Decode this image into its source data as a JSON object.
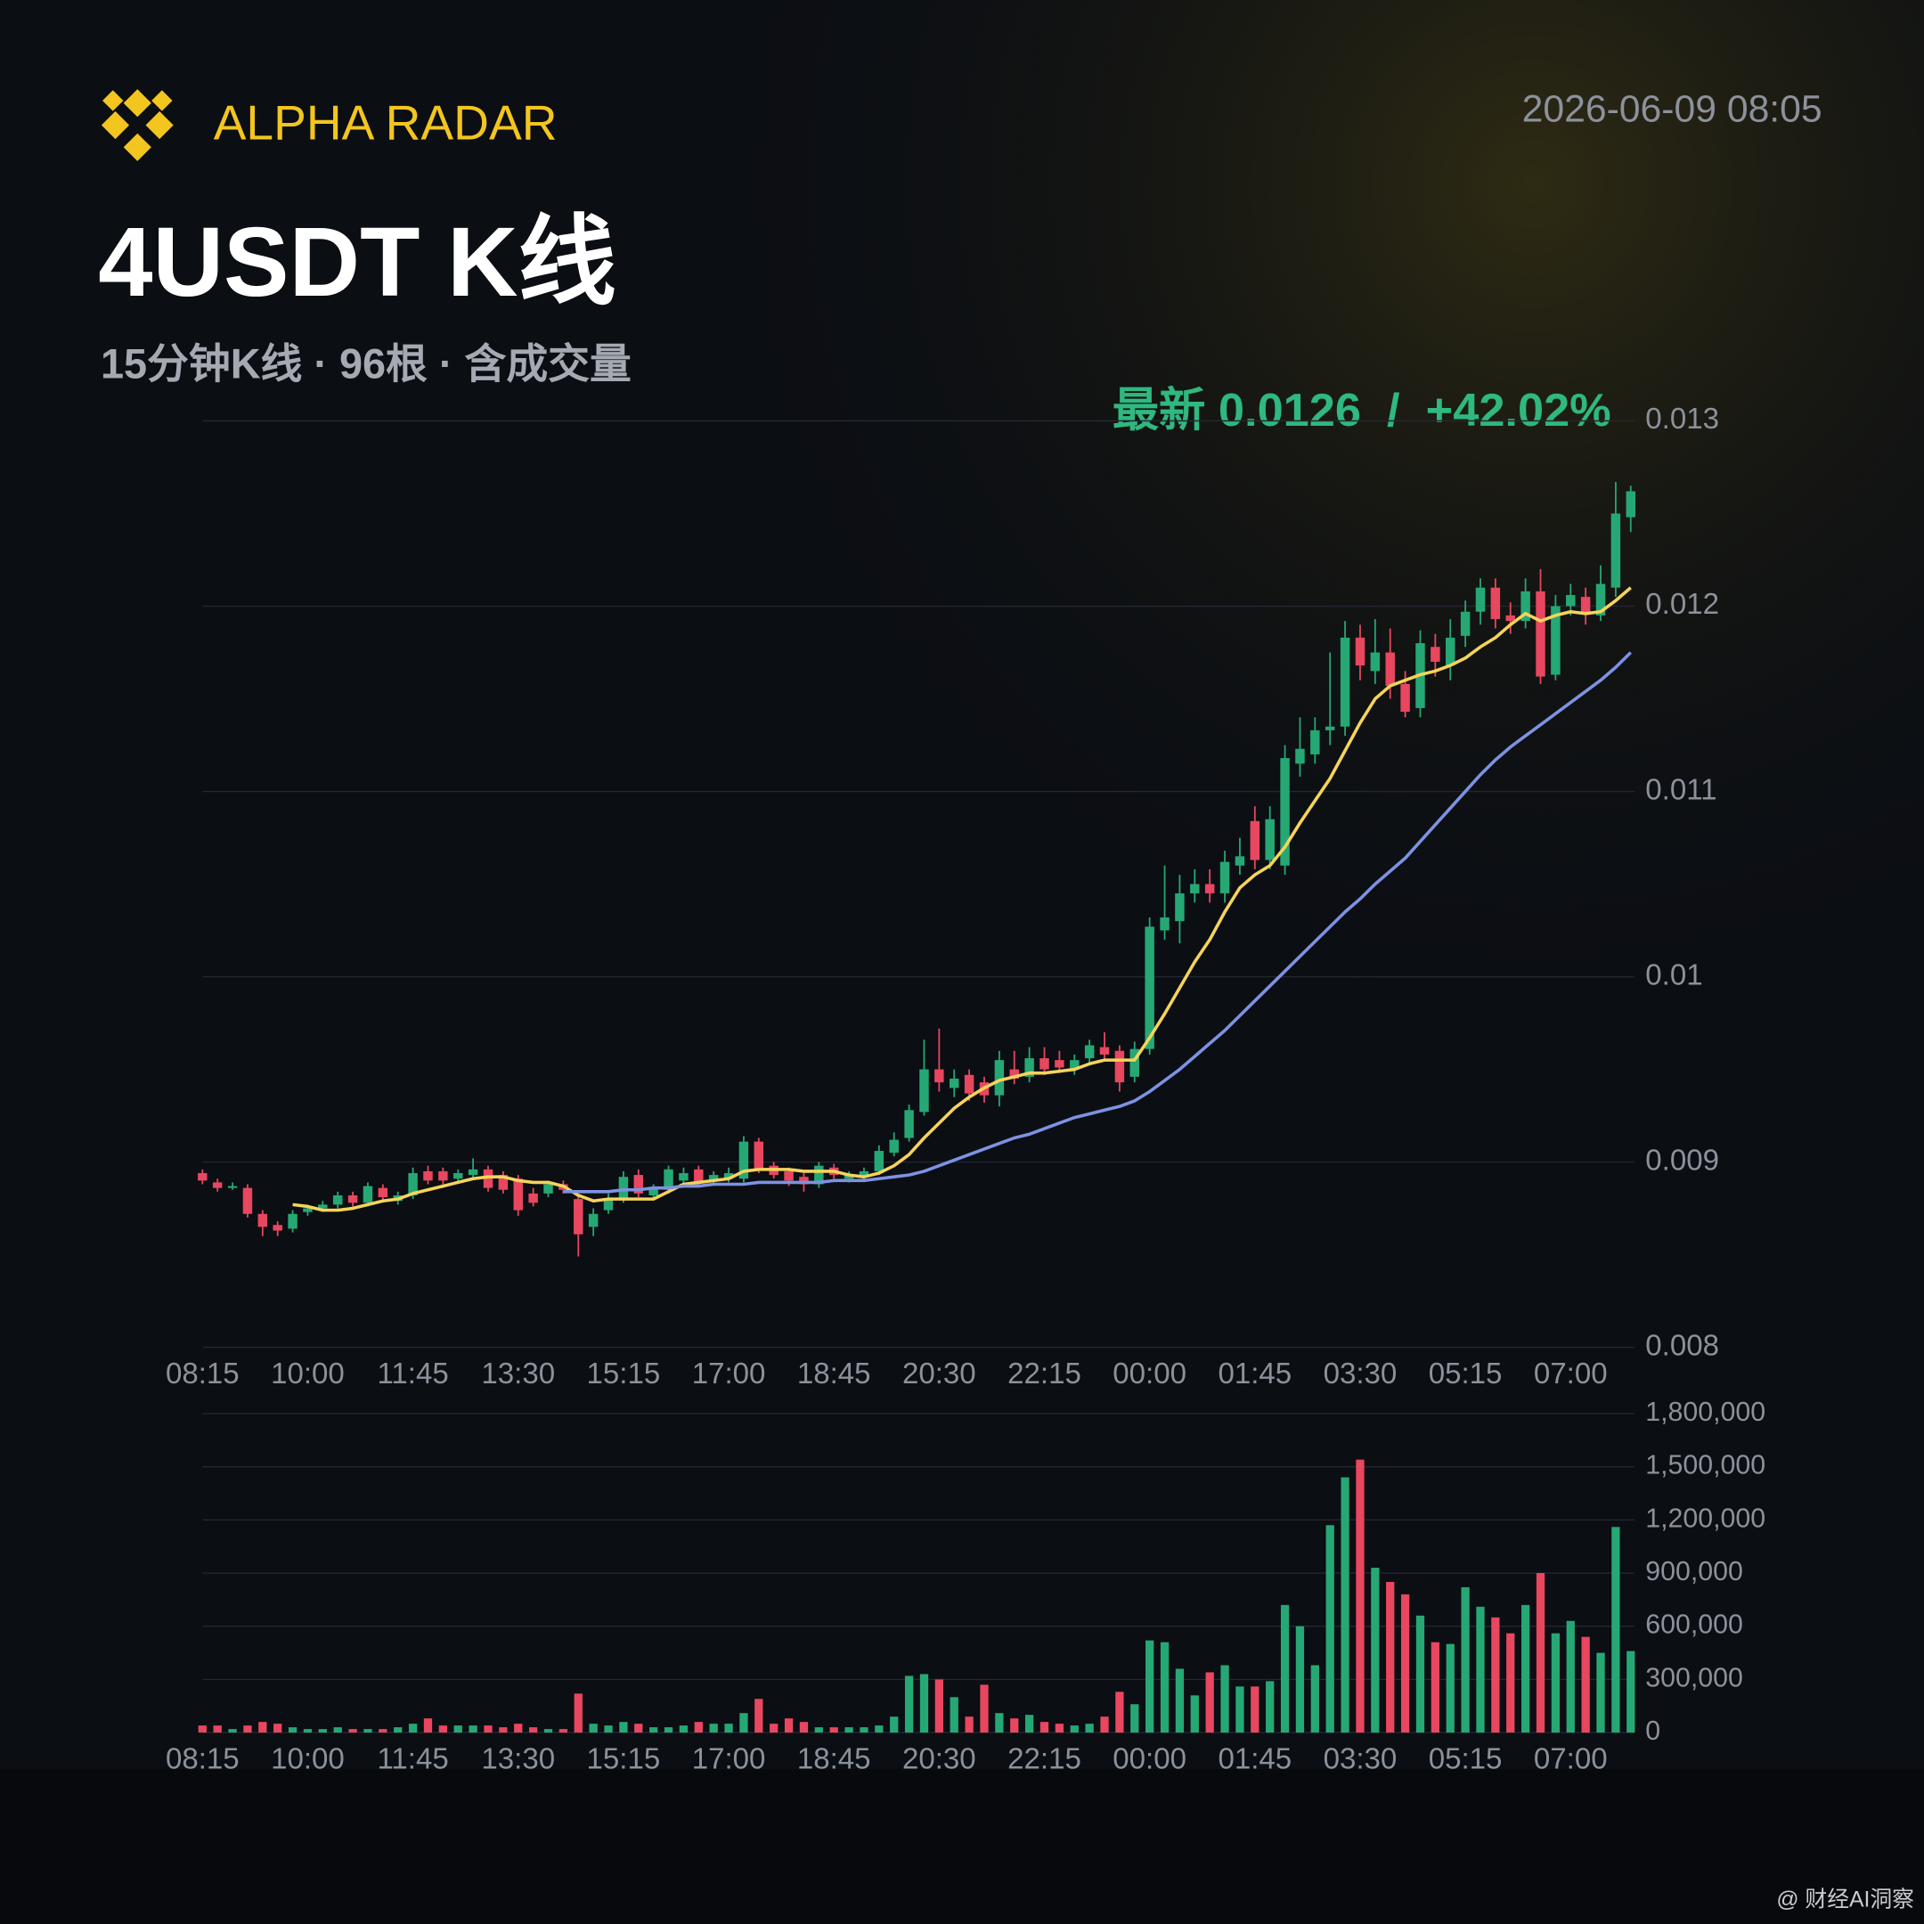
{
  "header": {
    "brand": "ALPHA RADAR",
    "datetime": "2026-06-09 08:05"
  },
  "footer": {
    "watermark": "@ 财经AI洞察"
  },
  "chart_data": [
    {
      "type": "candlestick",
      "title": "4USDT K线",
      "subtitle": "15分钟K线 · 96根 · 含成交量",
      "annotation": "最新 0.0126  /  +42.02%",
      "categories": [
        "08:15",
        null,
        null,
        null,
        null,
        null,
        null,
        "10:00",
        null,
        null,
        null,
        null,
        null,
        null,
        "11:45",
        null,
        null,
        null,
        null,
        null,
        null,
        "13:30",
        null,
        null,
        null,
        null,
        null,
        null,
        "15:15",
        null,
        null,
        null,
        null,
        null,
        null,
        "17:00",
        null,
        null,
        null,
        null,
        null,
        null,
        "18:45",
        null,
        null,
        null,
        null,
        null,
        null,
        "20:30",
        null,
        null,
        null,
        null,
        null,
        null,
        "22:15",
        null,
        null,
        null,
        null,
        null,
        null,
        "00:00",
        null,
        null,
        null,
        null,
        null,
        null,
        "01:45",
        null,
        null,
        null,
        null,
        null,
        null,
        "03:30",
        null,
        null,
        null,
        null,
        null,
        null,
        "05:15",
        null,
        null,
        null,
        null,
        null,
        null,
        "07:00",
        null,
        null,
        null,
        null
      ],
      "open": [
        0.00894,
        0.00889,
        0.00886,
        0.00886,
        0.00872,
        0.00866,
        0.00864,
        0.00873,
        0.00875,
        0.00877,
        0.00882,
        0.00878,
        0.00886,
        0.00879,
        0.00882,
        0.00895,
        0.00895,
        0.00891,
        0.00893,
        0.00896,
        0.00893,
        0.00891,
        0.00883,
        0.00883,
        0.00888,
        0.0088,
        0.00865,
        0.00874,
        0.0088,
        0.00893,
        0.00882,
        0.00885,
        0.0089,
        0.00896,
        0.0089,
        0.00891,
        0.00891,
        0.00911,
        0.00898,
        0.00895,
        0.00892,
        0.00888,
        0.00897,
        0.00891,
        0.00892,
        0.00895,
        0.00905,
        0.00913,
        0.00927,
        0.0095,
        0.0094,
        0.00947,
        0.00943,
        0.00936,
        0.0095,
        0.00946,
        0.00956,
        0.00955,
        0.0095,
        0.00956,
        0.00962,
        0.0096,
        0.00946,
        0.00961,
        0.01025,
        0.0103,
        0.01045,
        0.0105,
        0.01045,
        0.0106,
        0.01084,
        0.01063,
        0.0106,
        0.01115,
        0.0112,
        0.01133,
        0.01135,
        0.01183,
        0.01165,
        0.01175,
        0.01158,
        0.01145,
        0.01178,
        0.01168,
        0.01184,
        0.01197,
        0.0121,
        0.01195,
        0.01192,
        0.01208,
        0.01163,
        0.012,
        0.01205,
        0.01195,
        0.0121,
        0.01248
      ],
      "high": [
        0.00896,
        0.00891,
        0.00889,
        0.00888,
        0.00874,
        0.00868,
        0.00874,
        0.00877,
        0.00879,
        0.00884,
        0.00884,
        0.00889,
        0.00888,
        0.00884,
        0.00897,
        0.00898,
        0.00897,
        0.00896,
        0.00902,
        0.00898,
        0.00895,
        0.00893,
        0.00886,
        0.0089,
        0.0089,
        0.00882,
        0.00875,
        0.00883,
        0.00895,
        0.00896,
        0.00888,
        0.00898,
        0.00897,
        0.00898,
        0.00895,
        0.00897,
        0.00914,
        0.00913,
        0.009,
        0.00897,
        0.00894,
        0.009,
        0.00899,
        0.00895,
        0.00897,
        0.00909,
        0.00916,
        0.00931,
        0.00966,
        0.00972,
        0.0095,
        0.0095,
        0.00946,
        0.0096,
        0.0096,
        0.00962,
        0.00962,
        0.0096,
        0.00958,
        0.00966,
        0.0097,
        0.00963,
        0.00965,
        0.01032,
        0.0106,
        0.01055,
        0.01058,
        0.01058,
        0.01068,
        0.01075,
        0.01092,
        0.01092,
        0.01125,
        0.0114,
        0.0114,
        0.01175,
        0.01192,
        0.0119,
        0.01193,
        0.01188,
        0.01165,
        0.01187,
        0.01185,
        0.01193,
        0.01203,
        0.01215,
        0.01215,
        0.01202,
        0.01215,
        0.0122,
        0.01206,
        0.01212,
        0.0121,
        0.01222,
        0.01267,
        0.01265
      ],
      "low": [
        0.00888,
        0.00884,
        0.00885,
        0.0087,
        0.0086,
        0.0086,
        0.00862,
        0.00871,
        0.00873,
        0.00875,
        0.00876,
        0.00876,
        0.00879,
        0.00877,
        0.0088,
        0.00888,
        0.00888,
        0.00889,
        0.00891,
        0.00884,
        0.00883,
        0.00871,
        0.00876,
        0.00881,
        0.00883,
        0.00849,
        0.0086,
        0.00872,
        0.00878,
        0.00881,
        0.0088,
        0.00883,
        0.00888,
        0.00887,
        0.00888,
        0.00889,
        0.00889,
        0.00894,
        0.00891,
        0.00887,
        0.00884,
        0.00886,
        0.00891,
        0.00889,
        0.0089,
        0.00893,
        0.00903,
        0.00911,
        0.00925,
        0.00938,
        0.00935,
        0.00933,
        0.00932,
        0.0093,
        0.00942,
        0.00943,
        0.00947,
        0.00948,
        0.00947,
        0.00953,
        0.00955,
        0.00938,
        0.00943,
        0.00958,
        0.0102,
        0.01018,
        0.0104,
        0.0104,
        0.0104,
        0.01055,
        0.01058,
        0.01058,
        0.01055,
        0.01108,
        0.01115,
        0.01125,
        0.0113,
        0.0116,
        0.01158,
        0.0115,
        0.0114,
        0.0114,
        0.01162,
        0.0116,
        0.01178,
        0.0119,
        0.01188,
        0.01185,
        0.01188,
        0.01158,
        0.0116,
        0.01195,
        0.0119,
        0.01192,
        0.01205,
        0.0124
      ],
      "close": [
        0.0089,
        0.00886,
        0.00887,
        0.00872,
        0.00865,
        0.00863,
        0.00872,
        0.00875,
        0.00877,
        0.00882,
        0.00878,
        0.00887,
        0.00881,
        0.00882,
        0.00894,
        0.0089,
        0.0089,
        0.00894,
        0.00896,
        0.00886,
        0.00885,
        0.00874,
        0.00878,
        0.00888,
        0.00885,
        0.00861,
        0.00872,
        0.0088,
        0.00892,
        0.00883,
        0.00886,
        0.00896,
        0.00894,
        0.00889,
        0.00893,
        0.00894,
        0.00911,
        0.00896,
        0.00893,
        0.0089,
        0.00888,
        0.00898,
        0.00893,
        0.00893,
        0.00895,
        0.00906,
        0.00912,
        0.00928,
        0.0095,
        0.00943,
        0.00945,
        0.00937,
        0.00936,
        0.00955,
        0.00945,
        0.00956,
        0.0095,
        0.00951,
        0.00955,
        0.00963,
        0.00958,
        0.00943,
        0.00961,
        0.01027,
        0.01032,
        0.01045,
        0.0105,
        0.01045,
        0.01062,
        0.01065,
        0.01063,
        0.01085,
        0.01118,
        0.01123,
        0.01133,
        0.01135,
        0.01183,
        0.01168,
        0.01175,
        0.01157,
        0.01143,
        0.0118,
        0.0117,
        0.01183,
        0.01197,
        0.0121,
        0.01193,
        0.01192,
        0.01208,
        0.01162,
        0.012,
        0.01206,
        0.01196,
        0.01212,
        0.0125,
        0.01262
      ],
      "up_color": "#26a875",
      "down_color": "#e8475f",
      "ma": [
        {
          "color": "#f5d45a",
          "values": [
            null,
            null,
            null,
            null,
            null,
            null,
            0.00877,
            0.00876,
            0.00874,
            0.00874,
            0.00875,
            0.00877,
            0.00879,
            0.0088,
            0.00883,
            0.00885,
            0.00887,
            0.00889,
            0.00891,
            0.00892,
            0.00892,
            0.0089,
            0.00889,
            0.00889,
            0.00887,
            0.00882,
            0.00879,
            0.0088,
            0.0088,
            0.0088,
            0.0088,
            0.00884,
            0.00888,
            0.00889,
            0.0089,
            0.00891,
            0.00895,
            0.00896,
            0.00896,
            0.00896,
            0.00895,
            0.00895,
            0.00895,
            0.00893,
            0.00892,
            0.00894,
            0.00898,
            0.00904,
            0.00913,
            0.00921,
            0.00929,
            0.00935,
            0.0094,
            0.00944,
            0.00946,
            0.00948,
            0.00948,
            0.00949,
            0.0095,
            0.00953,
            0.00955,
            0.00955,
            0.00955,
            0.00967,
            0.0098,
            0.00994,
            0.01008,
            0.0102,
            0.01035,
            0.01048,
            0.01055,
            0.0106,
            0.0107,
            0.01083,
            0.01095,
            0.01107,
            0.01122,
            0.01137,
            0.0115,
            0.01157,
            0.0116,
            0.01163,
            0.01165,
            0.01168,
            0.01172,
            0.01178,
            0.01183,
            0.0119,
            0.01196,
            0.01192,
            0.01195,
            0.01197,
            0.01196,
            0.01197,
            0.01203,
            0.0121
          ]
        },
        {
          "color": "#7d92e3",
          "values": [
            null,
            null,
            null,
            null,
            null,
            null,
            null,
            null,
            null,
            null,
            null,
            null,
            null,
            null,
            null,
            null,
            null,
            null,
            null,
            null,
            null,
            null,
            null,
            null,
            0.00884,
            0.00884,
            0.00884,
            0.00884,
            0.00885,
            0.00885,
            0.00886,
            0.00886,
            0.00887,
            0.00887,
            0.00888,
            0.00888,
            0.00888,
            0.00889,
            0.00889,
            0.00889,
            0.00889,
            0.00889,
            0.0089,
            0.0089,
            0.0089,
            0.00891,
            0.00892,
            0.00893,
            0.00895,
            0.00898,
            0.00901,
            0.00904,
            0.00907,
            0.0091,
            0.00913,
            0.00915,
            0.00918,
            0.00921,
            0.00924,
            0.00926,
            0.00928,
            0.0093,
            0.00933,
            0.00938,
            0.00944,
            0.0095,
            0.00957,
            0.00964,
            0.00971,
            0.00979,
            0.00987,
            0.00995,
            0.01003,
            0.01011,
            0.01019,
            0.01027,
            0.01035,
            0.01042,
            0.0105,
            0.01057,
            0.01064,
            0.01073,
            0.01082,
            0.01091,
            0.011,
            0.01109,
            0.01117,
            0.01124,
            0.0113,
            0.01136,
            0.01142,
            0.01148,
            0.01154,
            0.0116,
            0.01167,
            0.01175
          ]
        }
      ],
      "ylim": [
        0.008,
        0.013
      ],
      "yticks": [
        0.008,
        0.009,
        0.01,
        0.011,
        0.012,
        0.013
      ],
      "grid": true
    },
    {
      "type": "bar",
      "categories": [
        "08:15",
        null,
        null,
        null,
        null,
        null,
        null,
        "10:00",
        null,
        null,
        null,
        null,
        null,
        null,
        "11:45",
        null,
        null,
        null,
        null,
        null,
        null,
        "13:30",
        null,
        null,
        null,
        null,
        null,
        null,
        "15:15",
        null,
        null,
        null,
        null,
        null,
        null,
        "17:00",
        null,
        null,
        null,
        null,
        null,
        null,
        "18:45",
        null,
        null,
        null,
        null,
        null,
        null,
        "20:30",
        null,
        null,
        null,
        null,
        null,
        null,
        "22:15",
        null,
        null,
        null,
        null,
        null,
        null,
        "00:00",
        null,
        null,
        null,
        null,
        null,
        null,
        "01:45",
        null,
        null,
        null,
        null,
        null,
        null,
        "03:30",
        null,
        null,
        null,
        null,
        null,
        null,
        "05:15",
        null,
        null,
        null,
        null,
        null,
        null,
        "07:00",
        null,
        null,
        null,
        null
      ],
      "values": [
        40000,
        40000,
        20000,
        40000,
        60000,
        50000,
        30000,
        20000,
        20000,
        30000,
        20000,
        20000,
        20000,
        30000,
        50000,
        80000,
        40000,
        40000,
        40000,
        40000,
        30000,
        50000,
        30000,
        20000,
        20000,
        220000,
        50000,
        40000,
        60000,
        50000,
        30000,
        30000,
        40000,
        60000,
        50000,
        50000,
        110000,
        190000,
        50000,
        80000,
        60000,
        30000,
        30000,
        30000,
        30000,
        40000,
        90000,
        320000,
        330000,
        300000,
        200000,
        90000,
        270000,
        110000,
        80000,
        100000,
        60000,
        50000,
        40000,
        50000,
        90000,
        230000,
        160000,
        520000,
        510000,
        360000,
        210000,
        340000,
        380000,
        260000,
        260000,
        290000,
        720000,
        600000,
        380000,
        1170000,
        1440000,
        1540000,
        930000,
        850000,
        780000,
        660000,
        510000,
        500000,
        820000,
        710000,
        650000,
        560000,
        720000,
        900000,
        560000,
        630000,
        540000,
        450000,
        1160000,
        460000
      ],
      "ylim": [
        0,
        1800000
      ],
      "yticks": [
        0,
        {
          "value": 300000,
          "label": "300,000"
        },
        {
          "value": 600000,
          "label": "600,000"
        },
        {
          "value": 900000,
          "label": "900,000"
        },
        {
          "value": 1200000,
          "label": "1,200,000"
        },
        {
          "value": 1500000,
          "label": "1,500,000"
        },
        {
          "value": 1800000,
          "label": "1,800,000"
        }
      ],
      "grid": true
    }
  ]
}
